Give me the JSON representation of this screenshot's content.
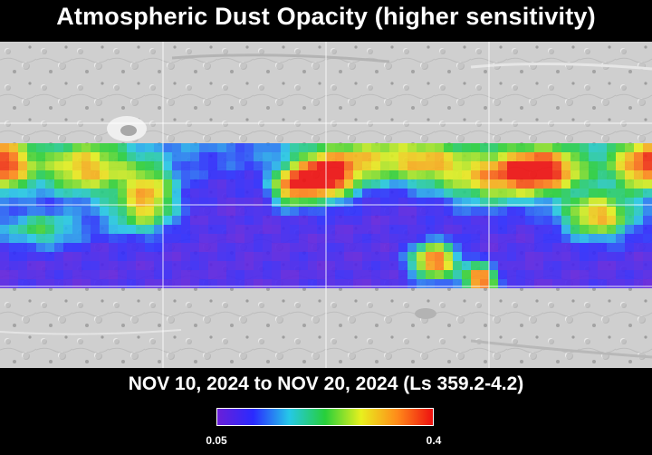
{
  "title": "Atmospheric Dust Opacity (higher sensitivity)",
  "date_range": "NOV 10, 2024 to NOV 20, 2024 (Ls 359.2-4.2)",
  "colorbar": {
    "min_label": "0.05",
    "max_label": "0.4",
    "colors": [
      "#6a1fd8",
      "#2a2aff",
      "#25c8e8",
      "#27cf3a",
      "#e8f01e",
      "#ff8c1a",
      "#ee1010"
    ]
  },
  "map": {
    "basemap": "shaded-relief (Mars)",
    "basemap_color": "#cfcfcf",
    "grid_color": "#ffffff",
    "grid": true,
    "colormap": [
      "#6a1fd8",
      "#2a2aff",
      "#25c8e8",
      "#27cf3a",
      "#e8f01e",
      "#ff8c1a",
      "#ee1010"
    ]
  }
}
